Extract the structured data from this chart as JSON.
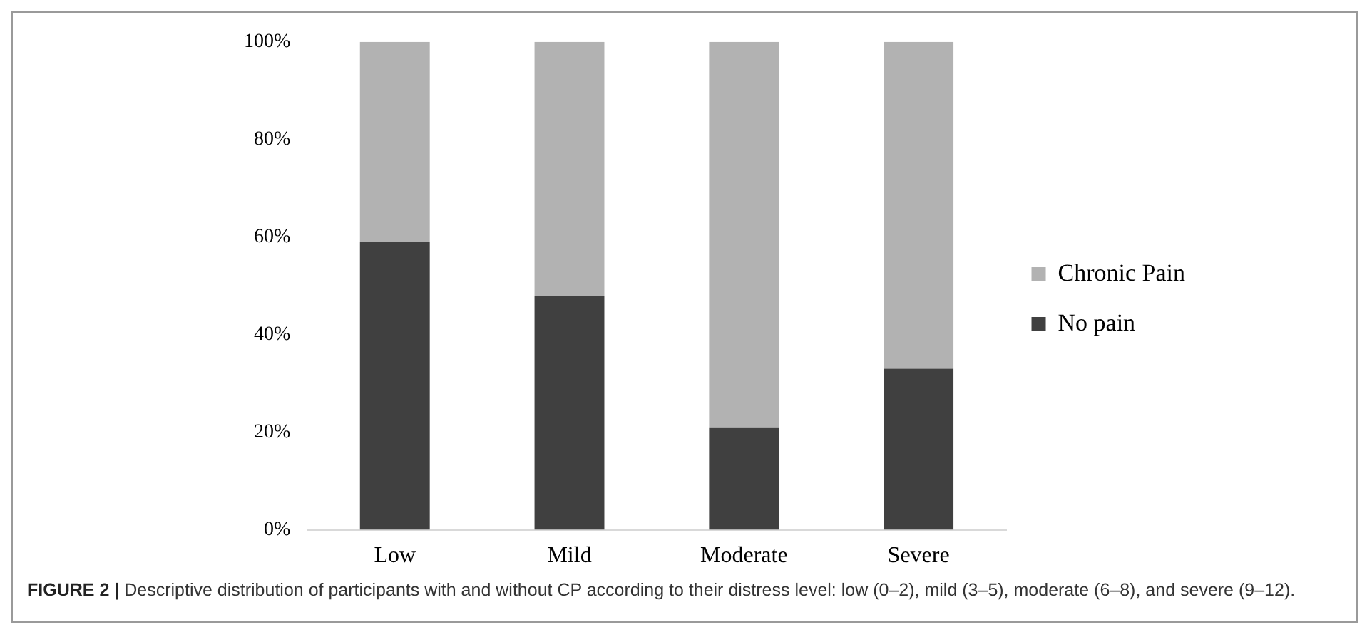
{
  "chart_data": {
    "type": "bar",
    "stacked": true,
    "categories": [
      "Low",
      "Mild",
      "Moderate",
      "Severe"
    ],
    "series": [
      {
        "name": "No pain",
        "color": "#404040",
        "values": [
          59,
          48,
          21,
          33
        ]
      },
      {
        "name": "Chronic Pain",
        "color": "#b2b2b2",
        "values": [
          41,
          52,
          79,
          67
        ]
      }
    ],
    "ylim": [
      0,
      100
    ],
    "yticks": [
      {
        "value": 0,
        "label": "0%"
      },
      {
        "value": 20,
        "label": "20%"
      },
      {
        "value": 40,
        "label": "40%"
      },
      {
        "value": 60,
        "label": "60%"
      },
      {
        "value": 80,
        "label": "80%"
      },
      {
        "value": 100,
        "label": "100%"
      }
    ],
    "grid": false,
    "legend": "right",
    "annotations": [
      "FIGURE 2 | Descriptive distribution of participants with and without CP according to their distress level: low (0–2), mild (3–5), moderate (6–8), and severe (9–12)."
    ]
  }
}
